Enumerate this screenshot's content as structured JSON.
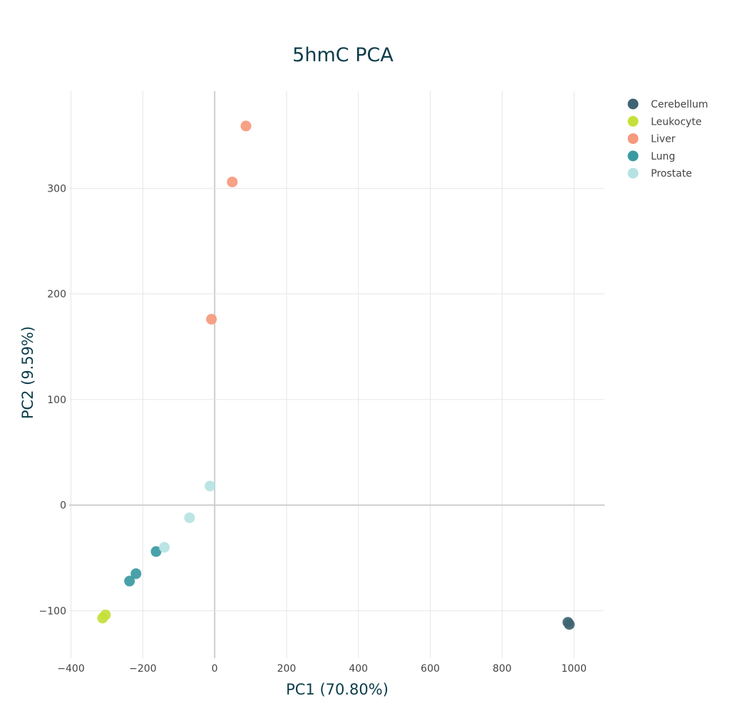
{
  "chart_data": {
    "type": "scatter",
    "title": "5hmC PCA",
    "xlabel": "PC1 (70.80%)",
    "ylabel": "PC2 (9.59%)",
    "xlim": [
      -405,
      1085
    ],
    "ylim": [
      -145,
      392
    ],
    "xticks": [
      -400,
      -200,
      0,
      200,
      400,
      600,
      800,
      1000
    ],
    "yticks": [
      -100,
      0,
      100,
      200,
      300
    ],
    "xtick_labels": [
      "−400",
      "−200",
      "0",
      "200",
      "400",
      "600",
      "800",
      "1000"
    ],
    "ytick_labels": [
      "−100",
      "0",
      "100",
      "200",
      "300"
    ],
    "grid": true,
    "legend_position": "top-right",
    "series": [
      {
        "name": "Cerebellum",
        "color": "#3e6474",
        "points": [
          [
            983,
            -111
          ],
          [
            987,
            -113
          ]
        ]
      },
      {
        "name": "Leukocyte",
        "color": "#c6e03a",
        "points": [
          [
            -304,
            -104
          ],
          [
            -312,
            -107
          ]
        ]
      },
      {
        "name": "Liver",
        "color": "#f6997c",
        "points": [
          [
            87,
            359
          ],
          [
            49,
            306
          ],
          [
            -9,
            176
          ]
        ]
      },
      {
        "name": "Lung",
        "color": "#3a9aa2",
        "points": [
          [
            -219,
            -65
          ],
          [
            -237,
            -72
          ],
          [
            -163,
            -44
          ]
        ]
      },
      {
        "name": "Prostate",
        "color": "#b5e3e2",
        "points": [
          [
            -13,
            18
          ],
          [
            -70,
            -12
          ],
          [
            -140,
            -40
          ]
        ]
      }
    ]
  }
}
